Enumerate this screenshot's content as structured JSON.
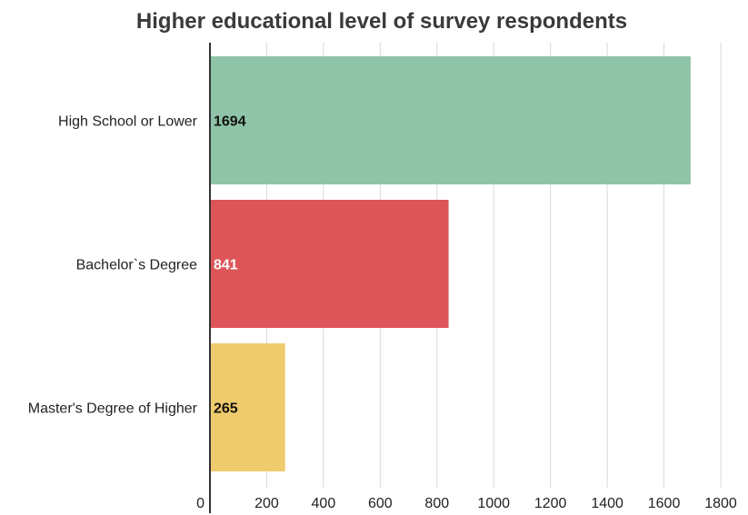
{
  "chart_data": {
    "type": "bar",
    "orientation": "horizontal",
    "title": "Higher educational level of survey respondents",
    "xlabel": "",
    "ylabel": "",
    "categories": [
      "High School or Lower",
      "Bachelor`s Degree",
      "Master's Degree of Higher"
    ],
    "values": [
      1694,
      841,
      265
    ],
    "data_labels": [
      "1694",
      "841",
      "265"
    ],
    "bar_colors": [
      "#8fc4a8",
      "#dd5558",
      "#eecb6c"
    ],
    "label_colors": [
      "#111111",
      "#ffffff",
      "#111111"
    ],
    "xlim": [
      0,
      1800
    ],
    "xticks": [
      0,
      200,
      400,
      600,
      800,
      1000,
      1200,
      1400,
      1600,
      1800
    ],
    "xtick_labels": [
      "0",
      "200",
      "400",
      "600",
      "800",
      "1000",
      "1200",
      "1400",
      "1600",
      "1800"
    ],
    "grid": true,
    "legend": "none"
  }
}
